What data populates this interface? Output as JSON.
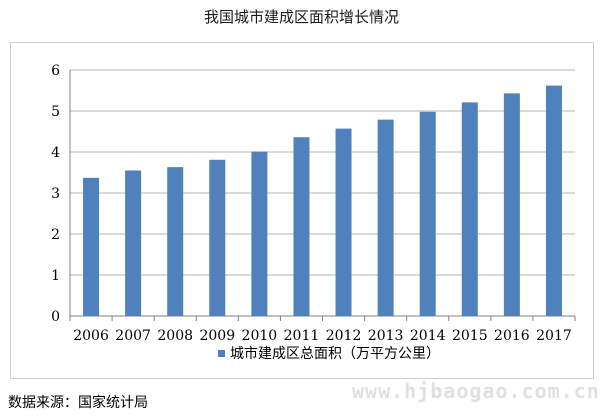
{
  "chart_data": {
    "type": "bar",
    "title": "我国城市建成区面积增长情况",
    "categories": [
      "2006",
      "2007",
      "2008",
      "2009",
      "2010",
      "2011",
      "2012",
      "2013",
      "2014",
      "2015",
      "2016",
      "2017"
    ],
    "series": [
      {
        "name": "城市建成区总面积（万平方公里）",
        "values": [
          3.37,
          3.55,
          3.63,
          3.81,
          4.01,
          4.36,
          4.57,
          4.79,
          4.98,
          5.21,
          5.43,
          5.62
        ]
      }
    ],
    "ylim": [
      0,
      6
    ],
    "yticks": [
      0,
      1,
      2,
      3,
      4,
      5,
      6
    ],
    "grid": true,
    "legend_position": "bottom",
    "bar_color": "#4f81bd"
  },
  "footer": {
    "source": "数据来源：国家统计局",
    "watermark": "www.hjbaogao.com.cn"
  }
}
